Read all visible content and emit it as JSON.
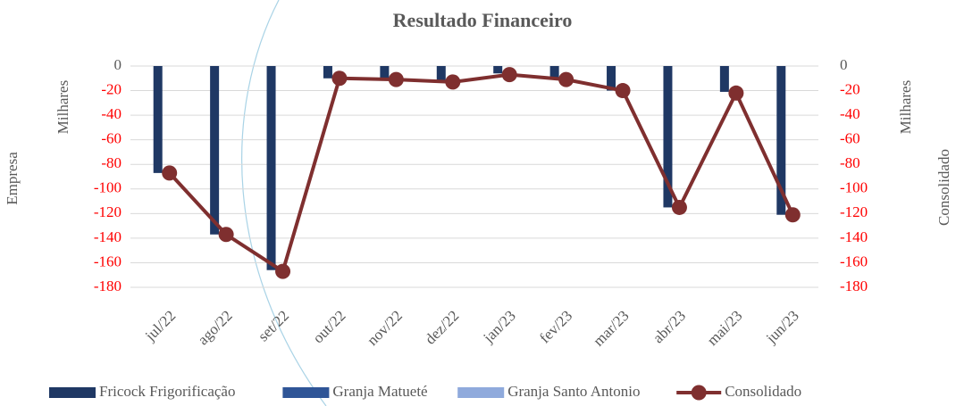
{
  "chart_data": {
    "type": "bar",
    "title": "Resultado Financeiro",
    "y_label": "Milhares",
    "y2_label": "Milhares",
    "y_outer_label": "Empresa",
    "y2_outer_label": "Consolidado",
    "categories": [
      "jul/22",
      "ago/22",
      "set/22",
      "out/22",
      "nov/22",
      "dez/22",
      "jan/23",
      "fev/23",
      "mar/23",
      "abr/23",
      "mai/23",
      "jun/23"
    ],
    "series": [
      {
        "name": "Fricock Frigorificação",
        "type": "bar",
        "color": "#1f3864",
        "values": [
          -87,
          -137,
          -166,
          -10,
          -10,
          -12,
          -6,
          -10,
          -20,
          -115,
          -21,
          -121
        ]
      },
      {
        "name": "Granja Matueté",
        "type": "bar",
        "color": "#2f5597",
        "values": [
          0,
          0,
          0,
          0,
          0,
          0,
          0,
          0,
          0,
          0,
          0,
          0
        ]
      },
      {
        "name": "Granja Santo Antonio",
        "type": "bar",
        "color": "#8faadc",
        "values": [
          0,
          0,
          0,
          0,
          0,
          0,
          0,
          0,
          0,
          0,
          0,
          0
        ]
      },
      {
        "name": "Consolidado",
        "type": "line",
        "axis": "y2",
        "color": "#7f2f2f",
        "values": [
          -87,
          -137,
          -167,
          -10,
          -11,
          -13,
          -7,
          -11,
          -20,
          -115,
          -22,
          -121
        ]
      }
    ],
    "ylim": [
      -180,
      0
    ],
    "yticks": [
      0,
      -20,
      -40,
      -60,
      -80,
      -100,
      -120,
      -140,
      -160,
      -180
    ],
    "y2lim": [
      -180,
      0
    ],
    "y2ticks": [
      0,
      -20,
      -40,
      -60,
      -80,
      -100,
      -120,
      -140,
      -160,
      -180
    ],
    "grid": true,
    "legend": "bottom"
  }
}
